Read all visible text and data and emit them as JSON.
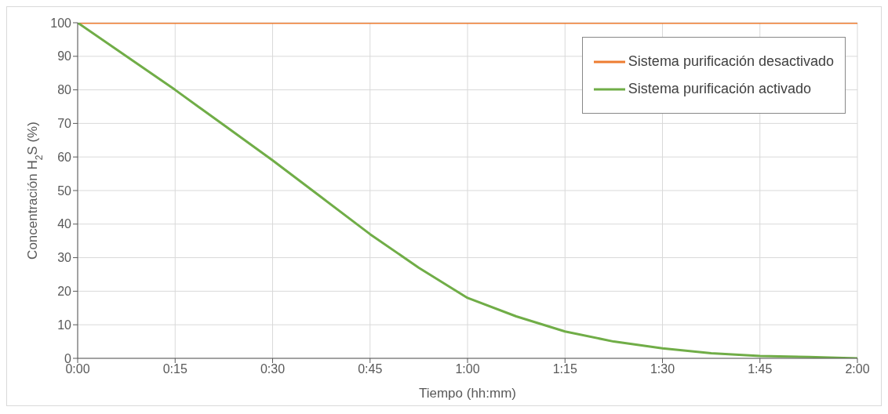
{
  "chart_data": {
    "type": "line",
    "xlabel": "Tiempo (hh:mm)",
    "ylabel": "Concentración H$_{2}$S (%)",
    "xlim": [
      0,
      2
    ],
    "xticks": [
      {
        "value": 0,
        "label": "0:00"
      },
      {
        "value": 0.25,
        "label": "0:15"
      },
      {
        "value": 0.5,
        "label": "0:30"
      },
      {
        "value": 0.75,
        "label": "0:45"
      },
      {
        "value": 1,
        "label": "1:00"
      },
      {
        "value": 1.25,
        "label": "1:15"
      },
      {
        "value": 1.5,
        "label": "1:30"
      },
      {
        "value": 1.75,
        "label": "1:45"
      },
      {
        "value": 2,
        "label": "2:00"
      }
    ],
    "ylim": [
      0,
      100
    ],
    "yticks": [
      0,
      10,
      20,
      30,
      40,
      50,
      60,
      70,
      80,
      90,
      100
    ],
    "grid": true,
    "legend": "top right",
    "marker": "none",
    "line_style": "solid",
    "series": [
      {
        "name": "Sistema purificación desactivado",
        "color": "#ed7d31",
        "x": [
          0,
          2
        ],
        "values": [
          100,
          100
        ]
      },
      {
        "name": "Sistema purificación activado",
        "color": "#70ad47",
        "x": [
          0,
          0.125,
          0.25,
          0.375,
          0.5,
          0.625,
          0.75,
          0.875,
          1,
          1.125,
          1.25,
          1.375,
          1.5,
          1.625,
          1.75,
          1.875,
          2
        ],
        "values": [
          100,
          90,
          80,
          69.5,
          59,
          48,
          37,
          27,
          18,
          12.5,
          8,
          5,
          3,
          1.5,
          0.7,
          0.4,
          0
        ]
      }
    ]
  }
}
